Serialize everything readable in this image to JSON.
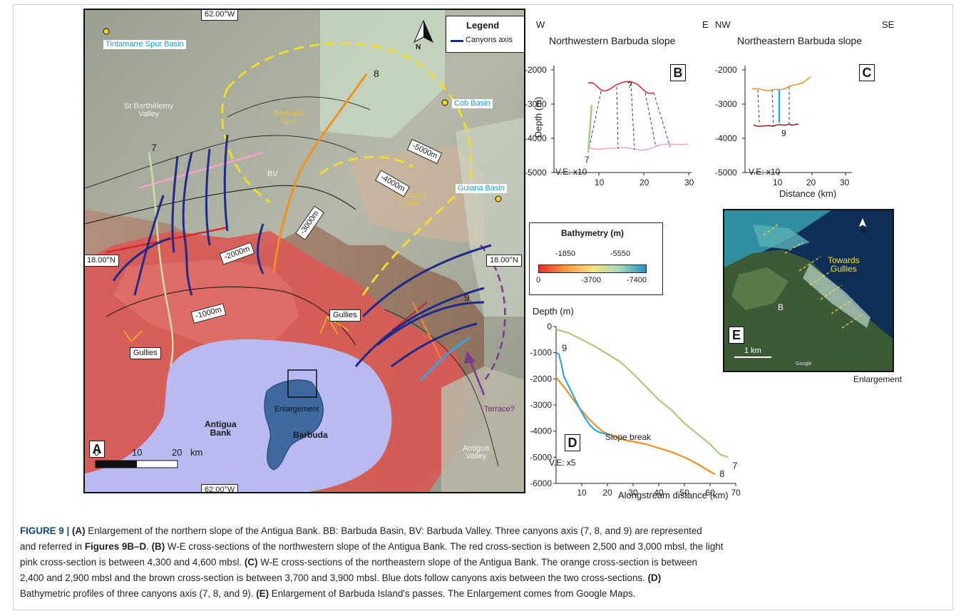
{
  "map": {
    "lat_label_left": "18.00°N",
    "lat_label_right": "18.00°N",
    "lon_label_top": "62.00°W",
    "lon_label_bottom": "62.00°W",
    "legend_title": "Legend",
    "legend_item": "Canyons axis",
    "north_letter": "N",
    "panel_letter": "A",
    "basins": [
      "Tintamarre Spur Basin",
      "Cob Basin",
      "Guiana Basin"
    ],
    "regions": {
      "st_barthelemy": "St Barthélemy\nValley",
      "barbuda_spur_top": "Barbuda\nSpur",
      "barbuda_spur_mid": "Barbuda\nSpur",
      "bv": "BV",
      "antigua_bank": "Antigua\nBank",
      "barbuda": "Barbuda",
      "enlargement": "Enlargement",
      "antigua_valley": "Antigua\nValley",
      "terrace": "Terrace?"
    },
    "contours": [
      "-5000m",
      "-4000m",
      "-3000m",
      "-2000m",
      "-1000m"
    ],
    "gullies": [
      "Gullies",
      "Gullies"
    ],
    "canyon_numbers": [
      "7",
      "8",
      "9"
    ],
    "scale": {
      "ticks": [
        "0",
        "10",
        "20"
      ],
      "unit": "km"
    }
  },
  "bathy_legend": {
    "title": "Bathymetry (m)",
    "top_ticks": [
      "-1850",
      "-5550"
    ],
    "bottom_ticks": [
      "0",
      "-3700",
      "-7400"
    ],
    "colors": [
      "#e8302a",
      "#f59a3c",
      "#f5e28a",
      "#a8d8b8",
      "#2a8fc9"
    ]
  },
  "panel_b": {
    "letter": "B",
    "dir_left": "W",
    "dir_right": "E",
    "title": "Northwestern Barbuda slope",
    "ylabel": "Depth (m)",
    "yticks": [
      "-2000",
      "-3000",
      "-4000",
      "-5000"
    ],
    "xticks": [
      "10",
      "20",
      "30"
    ],
    "ve": "V.E: x10",
    "canyon": "7",
    "question": "?"
  },
  "panel_c": {
    "letter": "C",
    "dir_left": "NW",
    "dir_right": "SE",
    "title": "Northeastern Barbuda slope",
    "yticks": [
      "-2000",
      "-3000",
      "-4000",
      "-5000"
    ],
    "xticks": [
      "10",
      "20",
      "30"
    ],
    "xlabel": "Distance (km)",
    "ve": "V.E: x10",
    "canyon": "9"
  },
  "chart_data": {
    "type": "line",
    "title": "",
    "ylabel": "Depth (m)",
    "xlabel": "Alongstream distance (km)",
    "xlim": [
      0,
      70
    ],
    "ylim": [
      -6000,
      0
    ],
    "xticks": [
      "10",
      "20",
      "30",
      "40",
      "50",
      "60",
      "70"
    ],
    "yticks": [
      "0",
      "-1000",
      "-2000",
      "-3000",
      "-4000",
      "-5000",
      "-6000"
    ],
    "series": [
      {
        "name": "7",
        "color": "#a8cc7a",
        "x": [
          0,
          5,
          10,
          15,
          20,
          25,
          30,
          35,
          40,
          45,
          50,
          55,
          60,
          64,
          67
        ],
        "y": [
          -100,
          -250,
          -500,
          -750,
          -1050,
          -1350,
          -1800,
          -2300,
          -2800,
          -3200,
          -3700,
          -4100,
          -4500,
          -4900,
          -5000
        ]
      },
      {
        "name": "8",
        "color": "#f0901e",
        "x": [
          0,
          3,
          6,
          9,
          12,
          15,
          18,
          21,
          24,
          27,
          30,
          35,
          40,
          45,
          50,
          55,
          60,
          62
        ],
        "y": [
          -1950,
          -2300,
          -2700,
          -3100,
          -3450,
          -3750,
          -4000,
          -4150,
          -4250,
          -4350,
          -4400,
          -4500,
          -4650,
          -4800,
          -5000,
          -5250,
          -5550,
          -5650
        ]
      },
      {
        "name": "9",
        "color": "#2aa8e0",
        "x": [
          0,
          1,
          2,
          3,
          5,
          7,
          9,
          11,
          13,
          15,
          17,
          19,
          21
        ],
        "y": [
          -1000,
          -1050,
          -1400,
          -1900,
          -2300,
          -2700,
          -3100,
          -3450,
          -3750,
          -3950,
          -4050,
          -4100,
          -4150
        ]
      }
    ],
    "annotations": [
      "Slope break",
      "V.E: x5",
      "D"
    ]
  },
  "panel_e": {
    "letter": "E",
    "north": "N",
    "towards": "Towards\nGullies",
    "b_label": "B",
    "scale": "1 km",
    "credit": "Google",
    "footer": "Enlargement"
  },
  "caption": {
    "line1_prefix": "FIGURE 9 | ",
    "line1_a": "(A)",
    "line1_text": " Enlargement of the northern slope of the Antigua Bank. BB: Barbuda Basin, BV: Barbuda Valley. Three canyons axis (7, 8, and 9) are represented",
    "line2_text": "and referred in ",
    "line2_ref": "Figures 9B–D",
    "line2_after": ". ",
    "line2_b": "(B)",
    "line2_rest": " W-E cross-sections of the northwestern slope of the Antigua Bank. The red cross-section is between 2,500 and 3,000 mbsl, the light",
    "line3": "pink cross-section is between 4,300 and 4,600 mbsl. ",
    "line3_c": "(C)",
    "line3_rest": " W-E cross-sections of the northeastern slope of the Antigua Bank. The orange cross-section is between",
    "line4": "2,400 and 2,900 mbsl and the brown cross-section is between 3,700 and 3,900 mbsl. Blue dots follow canyons axis between the two cross-sections. ",
    "line4_d": "(D)",
    "line5": "Bathymetric profiles of three canyons axis (7, 8, and 9). ",
    "line5_e": "(E)",
    "line5_rest": " Enlargement of Barbuda Island's passes. The Enlargement comes from Google Maps."
  }
}
